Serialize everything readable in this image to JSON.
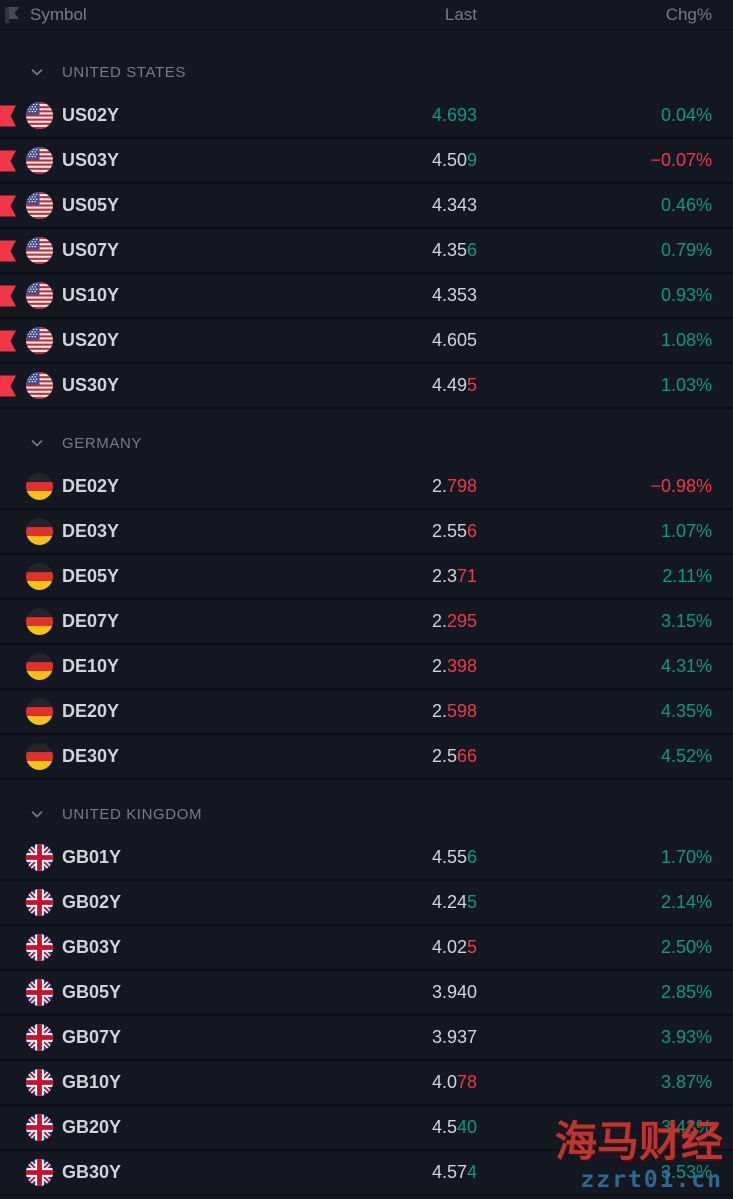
{
  "header": {
    "col_symbol": "Symbol",
    "col_last": "Last",
    "col_chg": "Chg%"
  },
  "colors": {
    "base": "#d1d4dc",
    "up": "#089981",
    "down": "#f23645",
    "muted": "#787b86",
    "background": "#131722"
  },
  "watermark": {
    "title": "海马财经",
    "url": "zzrt01.cn"
  },
  "groups": [
    {
      "id": "united-states",
      "label": "UNITED STATES",
      "rows": [
        {
          "symbol": "US02Y",
          "flag": "us",
          "flagged": true,
          "last": [
            {
              "t": "4.693",
              "c": "up"
            }
          ],
          "chg": {
            "t": "0.04%",
            "c": "up"
          }
        },
        {
          "symbol": "US03Y",
          "flag": "us",
          "flagged": true,
          "last": [
            {
              "t": "4.50",
              "c": "base"
            },
            {
              "t": "9",
              "c": "up"
            }
          ],
          "chg": {
            "t": "−0.07%",
            "c": "down"
          }
        },
        {
          "symbol": "US05Y",
          "flag": "us",
          "flagged": true,
          "last": [
            {
              "t": "4.343",
              "c": "base"
            }
          ],
          "chg": {
            "t": "0.46%",
            "c": "up"
          }
        },
        {
          "symbol": "US07Y",
          "flag": "us",
          "flagged": true,
          "last": [
            {
              "t": "4.35",
              "c": "base"
            },
            {
              "t": "6",
              "c": "up"
            }
          ],
          "chg": {
            "t": "0.79%",
            "c": "up"
          }
        },
        {
          "symbol": "US10Y",
          "flag": "us",
          "flagged": true,
          "last": [
            {
              "t": "4.353",
              "c": "base"
            }
          ],
          "chg": {
            "t": "0.93%",
            "c": "up"
          }
        },
        {
          "symbol": "US20Y",
          "flag": "us",
          "flagged": true,
          "last": [
            {
              "t": "4.605",
              "c": "base"
            }
          ],
          "chg": {
            "t": "1.08%",
            "c": "up"
          }
        },
        {
          "symbol": "US30Y",
          "flag": "us",
          "flagged": true,
          "last": [
            {
              "t": "4.49",
              "c": "base"
            },
            {
              "t": "5",
              "c": "down"
            }
          ],
          "chg": {
            "t": "1.03%",
            "c": "up"
          }
        }
      ]
    },
    {
      "id": "germany",
      "label": "GERMANY",
      "rows": [
        {
          "symbol": "DE02Y",
          "flag": "de",
          "flagged": false,
          "last": [
            {
              "t": "2.",
              "c": "base"
            },
            {
              "t": "798",
              "c": "down"
            }
          ],
          "chg": {
            "t": "−0.98%",
            "c": "down"
          }
        },
        {
          "symbol": "DE03Y",
          "flag": "de",
          "flagged": false,
          "last": [
            {
              "t": "2.55",
              "c": "base"
            },
            {
              "t": "6",
              "c": "down"
            }
          ],
          "chg": {
            "t": "1.07%",
            "c": "up"
          }
        },
        {
          "symbol": "DE05Y",
          "flag": "de",
          "flagged": false,
          "last": [
            {
              "t": "2.3",
              "c": "base"
            },
            {
              "t": "71",
              "c": "down"
            }
          ],
          "chg": {
            "t": "2.11%",
            "c": "up"
          }
        },
        {
          "symbol": "DE07Y",
          "flag": "de",
          "flagged": false,
          "last": [
            {
              "t": "2.",
              "c": "base"
            },
            {
              "t": "295",
              "c": "down"
            }
          ],
          "chg": {
            "t": "3.15%",
            "c": "up"
          }
        },
        {
          "symbol": "DE10Y",
          "flag": "de",
          "flagged": false,
          "last": [
            {
              "t": "2.",
              "c": "base"
            },
            {
              "t": "398",
              "c": "down"
            }
          ],
          "chg": {
            "t": "4.31%",
            "c": "up"
          }
        },
        {
          "symbol": "DE20Y",
          "flag": "de",
          "flagged": false,
          "last": [
            {
              "t": "2.",
              "c": "base"
            },
            {
              "t": "598",
              "c": "down"
            }
          ],
          "chg": {
            "t": "4.35%",
            "c": "up"
          }
        },
        {
          "symbol": "DE30Y",
          "flag": "de",
          "flagged": false,
          "last": [
            {
              "t": "2.5",
              "c": "base"
            },
            {
              "t": "66",
              "c": "down"
            }
          ],
          "chg": {
            "t": "4.52%",
            "c": "up"
          }
        }
      ]
    },
    {
      "id": "united-kingdom",
      "label": "UNITED KINGDOM",
      "rows": [
        {
          "symbol": "GB01Y",
          "flag": "gb",
          "flagged": false,
          "last": [
            {
              "t": "4.55",
              "c": "base"
            },
            {
              "t": "6",
              "c": "up"
            }
          ],
          "chg": {
            "t": "1.70%",
            "c": "up"
          }
        },
        {
          "symbol": "GB02Y",
          "flag": "gb",
          "flagged": false,
          "last": [
            {
              "t": "4.24",
              "c": "base"
            },
            {
              "t": "5",
              "c": "up"
            }
          ],
          "chg": {
            "t": "2.14%",
            "c": "up"
          }
        },
        {
          "symbol": "GB03Y",
          "flag": "gb",
          "flagged": false,
          "last": [
            {
              "t": "4.02",
              "c": "base"
            },
            {
              "t": "5",
              "c": "down"
            }
          ],
          "chg": {
            "t": "2.50%",
            "c": "up"
          }
        },
        {
          "symbol": "GB05Y",
          "flag": "gb",
          "flagged": false,
          "last": [
            {
              "t": "3.940",
              "c": "base"
            }
          ],
          "chg": {
            "t": "2.85%",
            "c": "up"
          }
        },
        {
          "symbol": "GB07Y",
          "flag": "gb",
          "flagged": false,
          "last": [
            {
              "t": "3.937",
              "c": "base"
            }
          ],
          "chg": {
            "t": "3.93%",
            "c": "up"
          }
        },
        {
          "symbol": "GB10Y",
          "flag": "gb",
          "flagged": false,
          "last": [
            {
              "t": "4.0",
              "c": "base"
            },
            {
              "t": "78",
              "c": "down"
            }
          ],
          "chg": {
            "t": "3.87%",
            "c": "up"
          }
        },
        {
          "symbol": "GB20Y",
          "flag": "gb",
          "flagged": false,
          "last": [
            {
              "t": "4.5",
              "c": "base"
            },
            {
              "t": "40",
              "c": "up"
            }
          ],
          "chg": {
            "t": "3.43%",
            "c": "up"
          }
        },
        {
          "symbol": "GB30Y",
          "flag": "gb",
          "flagged": false,
          "last": [
            {
              "t": "4.57",
              "c": "base"
            },
            {
              "t": "4",
              "c": "up"
            }
          ],
          "chg": {
            "t": "3.53%",
            "c": "up"
          }
        }
      ]
    }
  ]
}
